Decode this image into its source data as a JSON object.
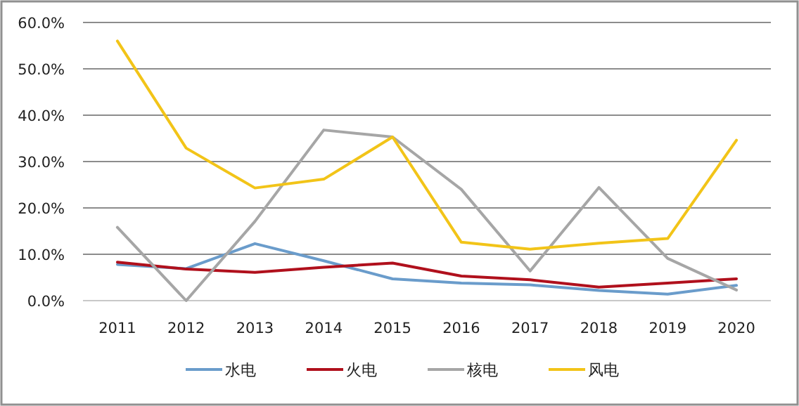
{
  "chart_data": {
    "type": "line",
    "categories": [
      "2011",
      "2012",
      "2013",
      "2014",
      "2015",
      "2016",
      "2017",
      "2018",
      "2019",
      "2020"
    ],
    "series": [
      {
        "name": "水电",
        "color": "#6a9ccb",
        "values": [
          7.8,
          6.9,
          12.3,
          8.6,
          4.7,
          3.8,
          3.4,
          2.2,
          1.4,
          3.3
        ]
      },
      {
        "name": "火电",
        "color": "#b0101c",
        "values": [
          8.3,
          6.8,
          6.1,
          7.2,
          8.1,
          5.3,
          4.5,
          2.9,
          3.8,
          4.7
        ]
      },
      {
        "name": "核电",
        "color": "#a6a6a6",
        "values": [
          15.8,
          0,
          17.1,
          36.8,
          35.3,
          24.0,
          6.4,
          24.4,
          9.1,
          2.3
        ]
      },
      {
        "name": "风电",
        "color": "#f2c418",
        "values": [
          56.0,
          32.9,
          24.3,
          26.2,
          35.3,
          12.6,
          11.1,
          12.4,
          13.4,
          34.6
        ]
      }
    ],
    "ylim": [
      0,
      60
    ],
    "yticks": [
      {
        "value": 0,
        "label": "0.0%"
      },
      {
        "value": 10,
        "label": "10.0%"
      },
      {
        "value": 20,
        "label": "20.0%"
      },
      {
        "value": 30,
        "label": "30.0%"
      },
      {
        "value": 40,
        "label": "40.0%"
      },
      {
        "value": 50,
        "label": "50.0%"
      },
      {
        "value": 60,
        "label": "60.0%"
      }
    ],
    "grid": "y",
    "legend": "bottom",
    "marker": "none",
    "line_style": "solid"
  }
}
